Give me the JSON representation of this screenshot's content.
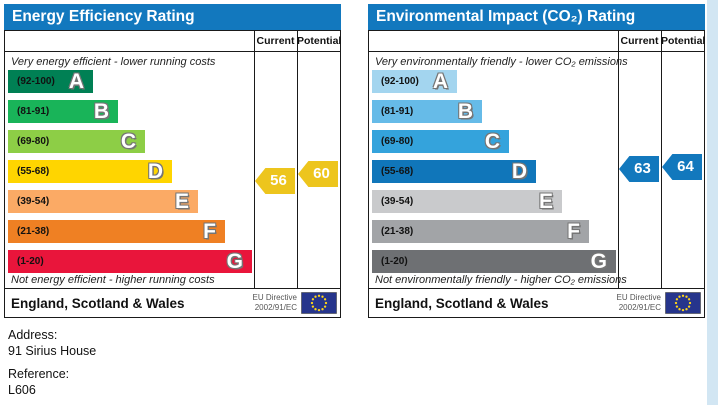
{
  "chart_data": [
    {
      "type": "bar",
      "title": "Energy Efficiency Rating",
      "categories": [
        "A (92-100)",
        "B (81-91)",
        "C (69-80)",
        "D (55-68)",
        "E (39-54)",
        "F (21-38)",
        "G (1-20)"
      ],
      "series": [
        {
          "name": "Current",
          "values": [
            56
          ]
        },
        {
          "name": "Potential",
          "values": [
            60
          ]
        }
      ],
      "scale": [
        1,
        100
      ],
      "top_note": "Very energy efficient - lower running costs",
      "bottom_note": "Not energy efficient - higher running costs"
    },
    {
      "type": "bar",
      "title": "Environmental Impact (CO₂) Rating",
      "categories": [
        "A (92-100)",
        "B (81-91)",
        "C (69-80)",
        "D (55-68)",
        "E (39-54)",
        "F (21-38)",
        "G (1-20)"
      ],
      "series": [
        {
          "name": "Current",
          "values": [
            63
          ]
        },
        {
          "name": "Potential",
          "values": [
            64
          ]
        }
      ],
      "scale": [
        1,
        100
      ],
      "top_note": "Very environmentally friendly - lower CO₂ emissions",
      "bottom_note": "Not environmentally friendly - higher CO₂ emissions"
    }
  ],
  "charts": [
    {
      "title": "Energy Efficiency Rating",
      "title_color": "#1278be",
      "columns": {
        "current": "Current",
        "potential": "Potential"
      },
      "top_caption": "Very energy efficient - lower running costs",
      "bottom_caption": "Not energy efficient - higher running costs",
      "current_value": "56",
      "potential_value": "60",
      "arrow_color": "#edc51d",
      "bands": [
        {
          "letter": "A",
          "range": "(92-100)",
          "color": "#008054"
        },
        {
          "letter": "B",
          "range": "(81-91)",
          "color": "#19b459"
        },
        {
          "letter": "C",
          "range": "(69-80)",
          "color": "#8dce46"
        },
        {
          "letter": "D",
          "range": "(55-68)",
          "color": "#ffd500"
        },
        {
          "letter": "E",
          "range": "(39-54)",
          "color": "#fbaa65"
        },
        {
          "letter": "F",
          "range": "(21-38)",
          "color": "#ef8023"
        },
        {
          "letter": "G",
          "range": "(1-20)",
          "color": "#e9153b"
        }
      ],
      "footer": {
        "region": "England, Scotland & Wales",
        "directive_line1": "EU Directive",
        "directive_line2": "2002/91/EC"
      }
    },
    {
      "title": "Environmental Impact (CO₂) Rating",
      "title_color": "#1278be",
      "columns": {
        "current": "Current",
        "potential": "Potential"
      },
      "top_caption": "Very environmentally friendly - lower CO₂ emissions",
      "bottom_caption": "Not environmentally friendly - higher CO₂ emissions",
      "current_value": "63",
      "potential_value": "64",
      "arrow_color": "#1278bd",
      "bands": [
        {
          "letter": "A",
          "range": "(92-100)",
          "color": "#a3d5ef"
        },
        {
          "letter": "B",
          "range": "(81-91)",
          "color": "#66bbe8"
        },
        {
          "letter": "C",
          "range": "(69-80)",
          "color": "#34a3dc"
        },
        {
          "letter": "D",
          "range": "(55-68)",
          "color": "#1076ba"
        },
        {
          "letter": "E",
          "range": "(39-54)",
          "color": "#c9cacc"
        },
        {
          "letter": "F",
          "range": "(21-38)",
          "color": "#a2a4a7"
        },
        {
          "letter": "G",
          "range": "(1-20)",
          "color": "#6e7073"
        }
      ],
      "footer": {
        "region": "England, Scotland & Wales",
        "directive_line1": "EU Directive",
        "directive_line2": "2002/91/EC"
      }
    }
  ],
  "details": {
    "address_label": "Address:",
    "address_value": "91 Sirius House",
    "reference_label": "Reference:",
    "reference_value": "L606"
  },
  "colors": {
    "eu_flag_blue": "#26358c",
    "eu_star_yellow": "#ffd617",
    "scrollbar": "#d2e6f3"
  }
}
